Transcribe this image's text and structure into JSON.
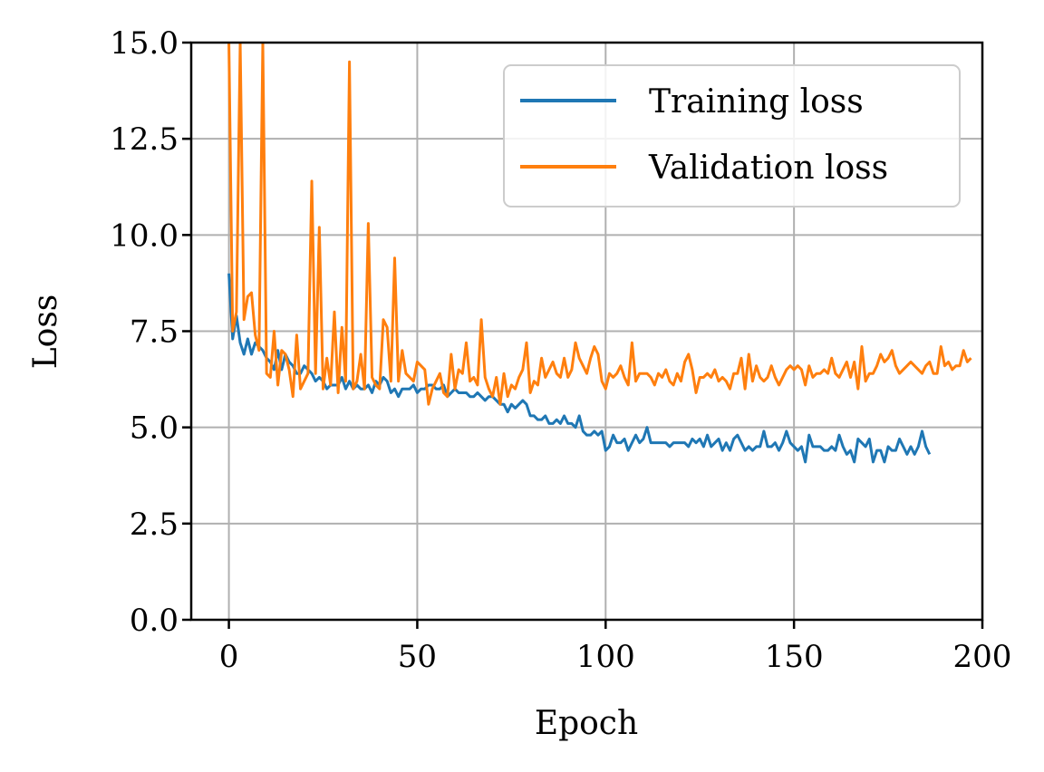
{
  "chart_data": {
    "type": "line",
    "xlabel": "Epoch",
    "ylabel": "Loss",
    "xlim": [
      -10,
      200
    ],
    "ylim": [
      0,
      15
    ],
    "xticks": [
      0,
      50,
      100,
      150,
      200
    ],
    "yticks": [
      0.0,
      2.5,
      5.0,
      7.5,
      10.0,
      12.5,
      15.0
    ],
    "xtick_labels": [
      "0",
      "50",
      "100",
      "150",
      "200"
    ],
    "ytick_labels": [
      "0.0",
      "2.5",
      "5.0",
      "7.5",
      "10.0",
      "12.5",
      "15.0"
    ],
    "grid": true,
    "legend_position": "top-right",
    "series": [
      {
        "name": "Training loss",
        "color": "#1f77b4",
        "x_start": 0,
        "x_step": 1,
        "values": [
          9.0,
          7.3,
          7.9,
          7.2,
          6.9,
          7.3,
          6.9,
          7.2,
          7.1,
          7.0,
          6.8,
          6.7,
          6.5,
          7.0,
          6.5,
          6.9,
          6.7,
          6.6,
          6.4,
          6.4,
          6.6,
          6.5,
          6.4,
          6.2,
          6.3,
          6.2,
          6.0,
          6.1,
          6.1,
          6.1,
          6.3,
          6.0,
          6.2,
          6.0,
          6.1,
          6.0,
          6.0,
          6.1,
          5.9,
          6.2,
          6.1,
          6.3,
          6.2,
          5.9,
          6.0,
          5.8,
          6.0,
          6.0,
          6.0,
          6.1,
          5.9,
          6.0,
          6.0,
          6.1,
          6.1,
          6.0,
          6.0,
          6.1,
          5.8,
          5.9,
          6.0,
          5.9,
          5.9,
          5.9,
          5.8,
          5.8,
          5.9,
          5.8,
          5.7,
          5.8,
          5.8,
          5.7,
          5.6,
          5.6,
          5.4,
          5.6,
          5.5,
          5.6,
          5.7,
          5.6,
          5.3,
          5.3,
          5.2,
          5.2,
          5.3,
          5.1,
          5.1,
          5.2,
          5.1,
          5.3,
          5.1,
          5.1,
          5.0,
          5.3,
          4.9,
          4.8,
          4.8,
          4.9,
          4.8,
          4.9,
          4.4,
          4.5,
          4.8,
          4.6,
          4.6,
          4.7,
          4.4,
          4.6,
          4.8,
          4.6,
          4.7,
          5.0,
          4.6,
          4.6,
          4.6,
          4.6,
          4.6,
          4.5,
          4.6,
          4.6,
          4.6,
          4.6,
          4.5,
          4.7,
          4.6,
          4.7,
          4.5,
          4.8,
          4.5,
          4.6,
          4.7,
          4.4,
          4.6,
          4.4,
          4.7,
          4.8,
          4.6,
          4.4,
          4.5,
          4.4,
          4.5,
          4.5,
          4.9,
          4.5,
          4.5,
          4.6,
          4.4,
          4.6,
          4.9,
          4.6,
          4.5,
          4.4,
          4.5,
          4.1,
          4.8,
          4.5,
          4.5,
          4.5,
          4.4,
          4.4,
          4.5,
          4.4,
          4.8,
          4.5,
          4.3,
          4.4,
          4.1,
          4.7,
          4.6,
          4.5,
          4.7,
          4.1,
          4.4,
          4.4,
          4.1,
          4.5,
          4.4,
          4.4,
          4.7,
          4.5,
          4.3,
          4.5,
          4.3,
          4.5,
          4.9,
          4.5,
          4.3
        ]
      },
      {
        "name": "Validation loss",
        "color": "#ff7f0e",
        "x_start": 0,
        "x_step": 1,
        "values": [
          15.0,
          7.5,
          8.0,
          15.0,
          7.8,
          8.4,
          8.5,
          7.4,
          7.0,
          15.0,
          6.4,
          6.3,
          7.5,
          6.1,
          7.0,
          6.9,
          6.5,
          5.8,
          7.4,
          6.0,
          6.2,
          6.4,
          11.4,
          6.4,
          10.2,
          6.0,
          6.8,
          6.1,
          8.0,
          5.9,
          7.6,
          6.2,
          14.5,
          6.0,
          6.2,
          6.9,
          6.0,
          10.3,
          6.3,
          6.1,
          6.0,
          7.8,
          7.6,
          6.2,
          9.4,
          6.2,
          7.0,
          6.4,
          6.3,
          6.2,
          6.7,
          6.6,
          6.5,
          5.6,
          6.0,
          6.2,
          6.4,
          5.9,
          5.8,
          6.9,
          6.0,
          6.5,
          6.4,
          7.2,
          6.2,
          6.3,
          6.1,
          7.8,
          6.3,
          6.0,
          5.8,
          6.3,
          5.6,
          6.4,
          5.8,
          6.1,
          6.0,
          6.3,
          6.5,
          7.2,
          5.9,
          6.2,
          6.1,
          6.8,
          6.3,
          6.5,
          6.7,
          6.4,
          6.3,
          6.8,
          6.3,
          6.5,
          7.2,
          6.8,
          6.6,
          6.4,
          6.8,
          7.1,
          6.9,
          6.2,
          6.0,
          6.4,
          6.3,
          6.4,
          6.6,
          6.3,
          6.1,
          7.2,
          6.2,
          6.4,
          6.4,
          6.4,
          6.3,
          6.1,
          6.4,
          6.3,
          6.5,
          6.2,
          6.1,
          6.4,
          6.2,
          6.7,
          6.9,
          6.5,
          5.9,
          6.3,
          6.3,
          6.4,
          6.3,
          6.5,
          6.2,
          6.3,
          6.2,
          6.0,
          6.4,
          6.4,
          6.8,
          6.0,
          6.9,
          6.2,
          6.6,
          6.3,
          6.2,
          6.3,
          6.6,
          6.3,
          6.1,
          6.3,
          6.5,
          6.6,
          6.5,
          6.6,
          6.5,
          6.1,
          6.6,
          6.3,
          6.4,
          6.4,
          6.5,
          6.4,
          6.8,
          6.4,
          6.3,
          6.5,
          6.7,
          6.3,
          6.7,
          6.0,
          7.1,
          6.2,
          6.4,
          6.4,
          6.6,
          6.9,
          6.7,
          6.8,
          7.0,
          6.6,
          6.4,
          6.5,
          6.6,
          6.7,
          6.6,
          6.5,
          6.4,
          6.6,
          6.7,
          6.4,
          6.4,
          7.1,
          6.6,
          6.7,
          6.5,
          6.6,
          6.6,
          7.0,
          6.7,
          6.8
        ]
      }
    ]
  }
}
